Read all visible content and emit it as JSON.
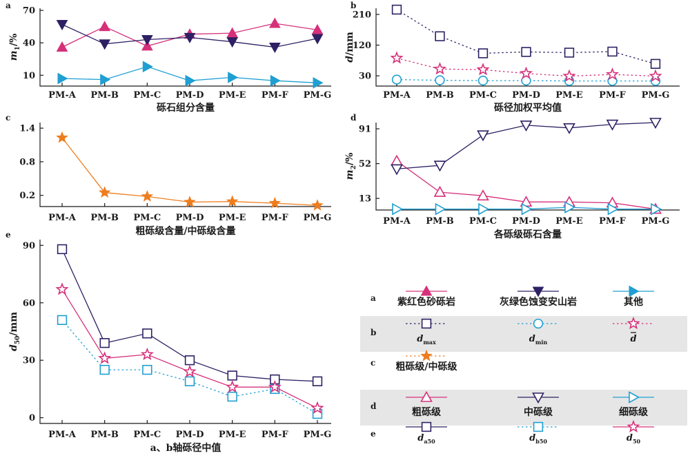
{
  "colors": {
    "pink": "#d6307a",
    "navy": "#2e2063",
    "cyan": "#1f9fd2",
    "orange": "#ee7d1f",
    "legend_band": "#e6e6e6"
  },
  "chart_data": [
    {
      "id": "a",
      "panel_label": "a",
      "type": "line",
      "categories": [
        "PM-A",
        "PM-B",
        "PM-C",
        "PM-D",
        "PM-E",
        "PM-F",
        "PM-G"
      ],
      "xlabel": "砾石组分含量",
      "ylabel_main": "m",
      "ylabel_sub": "1",
      "ylabel_unit": "/%",
      "yticks": [
        10,
        40,
        70
      ],
      "ylim": [
        0,
        72
      ],
      "grid": false,
      "series": [
        {
          "key": "purple_red_sandy_conglomerate",
          "color": "#d6307a",
          "marker": "triangle-up",
          "filled": true,
          "dash": "solid",
          "values": [
            36,
            55,
            37,
            48,
            49,
            58,
            52
          ]
        },
        {
          "key": "gray_green_altered_andesite",
          "color": "#2e2063",
          "marker": "triangle-down",
          "filled": true,
          "dash": "solid",
          "values": [
            57,
            39,
            43,
            45,
            41,
            36,
            44
          ]
        },
        {
          "key": "other",
          "color": "#1f9fd2",
          "marker": "triangle-right",
          "filled": true,
          "dash": "solid",
          "values": [
            7,
            6,
            18,
            5,
            8,
            5,
            3
          ]
        }
      ]
    },
    {
      "id": "b",
      "panel_label": "b",
      "type": "line",
      "categories": [
        "PM-A",
        "PM-B",
        "PM-C",
        "PM-D",
        "PM-E",
        "PM-F",
        "PM-G"
      ],
      "xlabel": "砾径加权平均值",
      "ylabel_main": "d",
      "ylabel_sub": "",
      "ylabel_unit": "/mm",
      "yticks": [
        30,
        120,
        210
      ],
      "ylim": [
        0,
        228
      ],
      "grid": false,
      "series": [
        {
          "key": "d_max",
          "color": "#2e2063",
          "marker": "square",
          "filled": false,
          "dash": "dotted",
          "values": [
            224,
            146,
            96,
            100,
            98,
            101,
            65
          ]
        },
        {
          "key": "d_min",
          "color": "#1f9fd2",
          "marker": "circle",
          "filled": false,
          "dash": "dotted",
          "values": [
            19,
            17,
            16,
            16,
            15,
            15,
            15
          ]
        },
        {
          "key": "d_mean",
          "color": "#d6307a",
          "marker": "star",
          "filled": false,
          "dash": "dotted",
          "values": [
            82,
            50,
            48,
            37,
            29,
            34,
            29
          ]
        }
      ]
    },
    {
      "id": "c",
      "panel_label": "c",
      "type": "line",
      "categories": [
        "PM-A",
        "PM-B",
        "PM-C",
        "PM-D",
        "PM-E",
        "PM-F",
        "PM-G"
      ],
      "xlabel": "粗砾级含量/中砾级含量",
      "ylabel_main": "",
      "ylabel_sub": "",
      "ylabel_unit": "",
      "yticks": [
        "0.2",
        "0.8",
        "1.4"
      ],
      "ylim": [
        0,
        1.5
      ],
      "grid": false,
      "series": [
        {
          "key": "coarse_over_medium",
          "color": "#ee7d1f",
          "marker": "star",
          "filled": true,
          "dash": "solid",
          "values": [
            1.23,
            0.25,
            0.18,
            0.08,
            0.09,
            0.06,
            0.02
          ]
        }
      ]
    },
    {
      "id": "d",
      "panel_label": "d",
      "type": "line",
      "categories": [
        "PM-A",
        "PM-B",
        "PM-C",
        "PM-D",
        "PM-E",
        "PM-F",
        "PM-G"
      ],
      "xlabel": "各砾级砾石含量",
      "ylabel_main": "m",
      "ylabel_sub": "2",
      "ylabel_unit": "/%",
      "yticks": [
        13,
        52,
        91
      ],
      "ylim": [
        0,
        98
      ],
      "grid": false,
      "series": [
        {
          "key": "coarse_gravel",
          "color": "#d6307a",
          "marker": "triangle-up",
          "filled": false,
          "dash": "solid",
          "values": [
            55,
            20,
            16,
            9,
            9,
            8,
            1
          ]
        },
        {
          "key": "medium_gravel",
          "color": "#2e2063",
          "marker": "triangle-down",
          "filled": false,
          "dash": "solid",
          "values": [
            46,
            50,
            84,
            95,
            92,
            96,
            98
          ]
        },
        {
          "key": "fine_gravel",
          "color": "#1f9fd2",
          "marker": "triangle-right",
          "filled": false,
          "dash": "solid",
          "values": [
            1,
            1,
            1,
            1,
            3,
            1,
            1
          ]
        }
      ]
    },
    {
      "id": "e",
      "panel_label": "e",
      "type": "line",
      "categories": [
        "PM-A",
        "PM-B",
        "PM-C",
        "PM-D",
        "PM-E",
        "PM-F",
        "PM-G"
      ],
      "xlabel": "a、b轴砾径中值",
      "ylabel_main": "d",
      "ylabel_sub": "50",
      "ylabel_unit": "/mm",
      "yticks": [
        0,
        30,
        60,
        90
      ],
      "ylim": [
        -3,
        93
      ],
      "grid": false,
      "series": [
        {
          "key": "d_a50",
          "color": "#2e2063",
          "marker": "square",
          "filled": false,
          "dash": "solid",
          "values": [
            88,
            39,
            44,
            30,
            22,
            20,
            19
          ]
        },
        {
          "key": "d_b50",
          "color": "#1f9fd2",
          "marker": "square",
          "filled": false,
          "dash": "dotted",
          "values": [
            51,
            25,
            25,
            19,
            11,
            15,
            2
          ]
        },
        {
          "key": "d_50",
          "color": "#d6307a",
          "marker": "star",
          "filled": false,
          "dash": "solid",
          "values": [
            67,
            31,
            33,
            24,
            16,
            16,
            5
          ]
        }
      ]
    }
  ],
  "legend": {
    "rows": [
      {
        "label": "a",
        "band": false,
        "entries": [
          {
            "text": "紫红色砂砾岩",
            "color": "#d6307a",
            "marker": "triangle-up",
            "filled": true,
            "dash": "solid"
          },
          {
            "text": "灰绿色蚀变安山岩",
            "color": "#2e2063",
            "marker": "triangle-down",
            "filled": true,
            "dash": "solid"
          },
          {
            "text": "其他",
            "color": "#1f9fd2",
            "marker": "triangle-right",
            "filled": true,
            "dash": "solid"
          }
        ]
      },
      {
        "label": "b",
        "band": true,
        "entries": [
          {
            "sym": "d",
            "sub": "max",
            "overbar": false,
            "color": "#2e2063",
            "marker": "square",
            "filled": false,
            "dash": "dotted"
          },
          {
            "sym": "d",
            "sub": "min",
            "overbar": false,
            "color": "#1f9fd2",
            "marker": "circle",
            "filled": false,
            "dash": "dotted"
          },
          {
            "sym": "d",
            "sub": "",
            "overbar": true,
            "color": "#d6307a",
            "marker": "star",
            "filled": false,
            "dash": "dotted"
          }
        ]
      },
      {
        "label": "c",
        "band": false,
        "entries": [
          {
            "text": "粗砾级/中砾级",
            "color": "#ee7d1f",
            "marker": "star",
            "filled": true,
            "dash": "dotted"
          }
        ]
      },
      {
        "label": "d",
        "band": true,
        "entries": [
          {
            "text": "粗砾级",
            "color": "#d6307a",
            "marker": "triangle-up",
            "filled": false,
            "dash": "solid"
          },
          {
            "text": "中砾级",
            "color": "#2e2063",
            "marker": "triangle-down",
            "filled": false,
            "dash": "solid"
          },
          {
            "text": "细砾级",
            "color": "#1f9fd2",
            "marker": "triangle-right",
            "filled": false,
            "dash": "solid"
          }
        ]
      },
      {
        "label": "e",
        "band": false,
        "entries": [
          {
            "sym": "d",
            "sub": "a50",
            "overbar": false,
            "color": "#2e2063",
            "marker": "square",
            "filled": false,
            "dash": "solid"
          },
          {
            "sym": "d",
            "sub": "b50",
            "overbar": false,
            "color": "#1f9fd2",
            "marker": "square",
            "filled": false,
            "dash": "dotted"
          },
          {
            "sym": "d",
            "sub": "50",
            "overbar": false,
            "color": "#d6307a",
            "marker": "star",
            "filled": false,
            "dash": "solid"
          }
        ]
      }
    ]
  }
}
